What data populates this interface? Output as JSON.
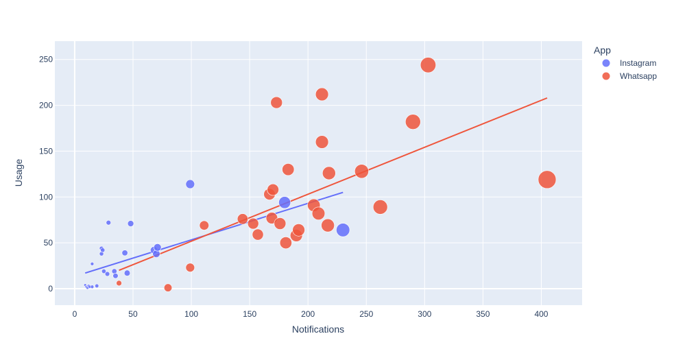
{
  "chart_data": {
    "type": "scatter",
    "xlabel": "Notifications",
    "ylabel": "Usage",
    "xlim": [
      -17,
      435
    ],
    "ylim": [
      -18,
      270
    ],
    "xticks": [
      0,
      50,
      100,
      150,
      200,
      250,
      300,
      350,
      400
    ],
    "yticks": [
      0,
      50,
      100,
      150,
      200,
      250
    ],
    "grid": true,
    "legend": {
      "title": "App",
      "position": "top-right"
    },
    "size_max": 405,
    "series": [
      {
        "name": "Instagram",
        "color": "#636efa",
        "points": [
          [
            9,
            4
          ],
          [
            10,
            2
          ],
          [
            11,
            1
          ],
          [
            12,
            3
          ],
          [
            13,
            2
          ],
          [
            15,
            27
          ],
          [
            15,
            2
          ],
          [
            19,
            3
          ],
          [
            23,
            38
          ],
          [
            23,
            44
          ],
          [
            24,
            42
          ],
          [
            25,
            19
          ],
          [
            28,
            16
          ],
          [
            29,
            72
          ],
          [
            34,
            19
          ],
          [
            35,
            14
          ],
          [
            43,
            39
          ],
          [
            45,
            17
          ],
          [
            48,
            71
          ],
          [
            68,
            42
          ],
          [
            70,
            38
          ],
          [
            71,
            45
          ],
          [
            99,
            114
          ],
          [
            180,
            94
          ],
          [
            230,
            64
          ]
        ],
        "trendline": [
          [
            9,
            17
          ],
          [
            230,
            105
          ]
        ]
      },
      {
        "name": "Whatsapp",
        "color": "#ef553b",
        "points": [
          [
            38,
            6
          ],
          [
            80,
            1
          ],
          [
            99,
            23
          ],
          [
            111,
            69
          ],
          [
            144,
            76
          ],
          [
            153,
            71
          ],
          [
            157,
            59
          ],
          [
            167,
            103
          ],
          [
            169,
            77
          ],
          [
            170,
            108
          ],
          [
            173,
            203
          ],
          [
            176,
            71
          ],
          [
            181,
            50
          ],
          [
            183,
            130
          ],
          [
            190,
            58
          ],
          [
            192,
            64
          ],
          [
            205,
            91
          ],
          [
            209,
            82
          ],
          [
            212,
            212
          ],
          [
            212,
            160
          ],
          [
            217,
            69
          ],
          [
            218,
            126
          ],
          [
            246,
            128
          ],
          [
            262,
            89
          ],
          [
            290,
            182
          ],
          [
            303,
            244
          ],
          [
            405,
            119
          ]
        ],
        "trendline": [
          [
            38,
            20
          ],
          [
            405,
            208
          ]
        ]
      }
    ]
  }
}
